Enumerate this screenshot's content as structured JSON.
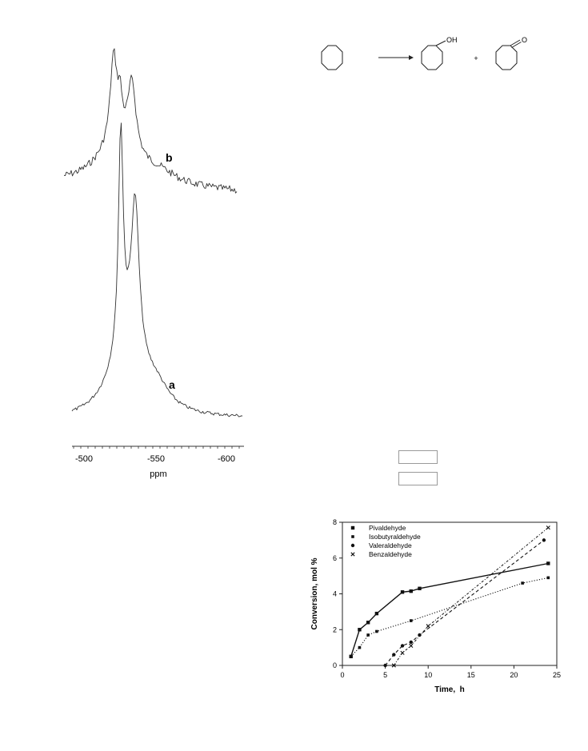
{
  "spectra": {
    "labels": [
      "b",
      "a"
    ],
    "axis_ticks": [
      "-500",
      "-550",
      "-600"
    ],
    "axis_unit": "ppm"
  },
  "scheme": {
    "oh_label": "OH",
    "o_label": "O",
    "plus": "+"
  },
  "chart_data": {
    "type": "scatter",
    "xlabel": "Time,  h",
    "ylabel": "Conversion, mol %",
    "xlim": [
      0,
      25
    ],
    "ylim": [
      0,
      8
    ],
    "x_ticks": [
      0,
      5,
      10,
      15,
      20,
      25
    ],
    "y_ticks": [
      0,
      2,
      4,
      6,
      8
    ],
    "legend_position": "top-left",
    "series": [
      {
        "name": "Pivaldehyde",
        "marker": "square",
        "line": "solid",
        "x": [
          1,
          2,
          3,
          4,
          7,
          8,
          9,
          24
        ],
        "y": [
          0.5,
          2.0,
          2.4,
          2.9,
          4.1,
          4.15,
          4.3,
          5.7
        ]
      },
      {
        "name": "Isobutyraldehyde",
        "marker": "square-small",
        "line": "dotted",
        "x": [
          1,
          2,
          3,
          4,
          8,
          21,
          24
        ],
        "y": [
          0.5,
          1.0,
          1.7,
          1.9,
          2.5,
          4.6,
          4.9
        ]
      },
      {
        "name": "Valeraldehyde",
        "marker": "circle",
        "line": "dashed",
        "x": [
          5,
          6,
          7,
          8,
          9,
          23.5
        ],
        "y": [
          0.0,
          0.6,
          1.1,
          1.3,
          1.7,
          7.0
        ]
      },
      {
        "name": "Benzaldehyde",
        "marker": "cross",
        "line": "dashdot",
        "x": [
          6,
          7,
          8,
          10,
          24
        ],
        "y": [
          0.0,
          0.7,
          1.1,
          2.2,
          7.7
        ]
      }
    ]
  }
}
